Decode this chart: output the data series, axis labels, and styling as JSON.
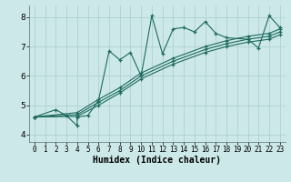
{
  "xlabel": "Humidex (Indice chaleur)",
  "background_color": "#cce8e8",
  "line_color": "#1e6b5e",
  "xlim": [
    -0.5,
    23.5
  ],
  "ylim": [
    3.75,
    8.4
  ],
  "xticks": [
    0,
    1,
    2,
    3,
    4,
    5,
    6,
    7,
    8,
    9,
    10,
    11,
    12,
    13,
    14,
    15,
    16,
    17,
    18,
    19,
    20,
    21,
    22,
    23
  ],
  "yticks": [
    4,
    5,
    6,
    7,
    8
  ],
  "grid_color": "#aacece",
  "figsize": [
    3.2,
    2.0
  ],
  "dpi": 100,
  "lines": [
    {
      "x": [
        0,
        2,
        3,
        4,
        4,
        5,
        6,
        7,
        8,
        9,
        10,
        11,
        12,
        13,
        14,
        15,
        16,
        17,
        18,
        20,
        21,
        22,
        23
      ],
      "y": [
        4.6,
        4.85,
        4.65,
        4.3,
        4.6,
        4.65,
        5.15,
        6.85,
        6.55,
        6.8,
        6.0,
        8.05,
        6.75,
        7.6,
        7.65,
        7.5,
        7.85,
        7.45,
        7.3,
        7.25,
        6.95,
        8.05,
        7.65
      ]
    },
    {
      "x": [
        0,
        4,
        6,
        8,
        10,
        13,
        16,
        18,
        20,
        22,
        23
      ],
      "y": [
        4.6,
        4.75,
        5.2,
        5.6,
        6.1,
        6.6,
        7.0,
        7.2,
        7.35,
        7.45,
        7.6
      ]
    },
    {
      "x": [
        0,
        4,
        6,
        8,
        10,
        13,
        16,
        18,
        20,
        22,
        23
      ],
      "y": [
        4.6,
        4.68,
        5.1,
        5.5,
        6.0,
        6.5,
        6.9,
        7.1,
        7.25,
        7.35,
        7.5
      ]
    },
    {
      "x": [
        0,
        4,
        6,
        8,
        10,
        13,
        16,
        18,
        20,
        22,
        23
      ],
      "y": [
        4.6,
        4.62,
        5.0,
        5.42,
        5.9,
        6.4,
        6.8,
        7.0,
        7.15,
        7.25,
        7.4
      ]
    }
  ]
}
